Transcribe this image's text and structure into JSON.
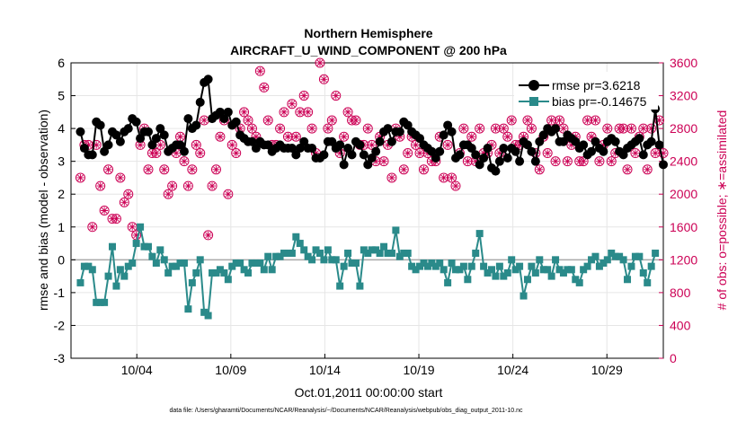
{
  "chart_data": {
    "type": "line",
    "title": "Northern Hemisphere",
    "subtitle": "AIRCRAFT_U_WIND_COMPONENT @ 200 hPa",
    "xlabel": "Oct.01,2011 00:00:00 start",
    "ylabel_left": "rmse and bias (model - observation)",
    "ylabel_right": "# of obs: o=possible; ∗=assimilated",
    "footnote": "data file: /Users/gharamti/Documents/NCAR/Reanalysis/~/Documents/NCAR/Reanalysis/webpub/obs_diag_output_2011-10.nc",
    "x_range_days": [
      0.5,
      32.0
    ],
    "x_ticks": [
      {
        "day": 4,
        "label": "10/04"
      },
      {
        "day": 9,
        "label": "10/09"
      },
      {
        "day": 14,
        "label": "10/14"
      },
      {
        "day": 19,
        "label": "10/19"
      },
      {
        "day": 24,
        "label": "10/24"
      },
      {
        "day": 29,
        "label": "10/29"
      }
    ],
    "ylim_left": [
      -3,
      6
    ],
    "y_ticks_left": [
      "-3",
      "-2",
      "-1",
      "0",
      "1",
      "2",
      "3",
      "4",
      "5",
      "6"
    ],
    "ylim_right": [
      0,
      3600
    ],
    "y_ticks_right": [
      "0",
      "400",
      "800",
      "1200",
      "1600",
      "2000",
      "2400",
      "2800",
      "3200",
      "3600"
    ],
    "grid": true,
    "zero_line": true,
    "legend_position": "top-right",
    "series": [
      {
        "name": "rmse pr=3.6218",
        "color": "#000000",
        "marker": "circle",
        "values": [
          3.9,
          3.4,
          3.2,
          3.2,
          4.2,
          4.1,
          3.3,
          3.5,
          3.9,
          3.8,
          3.6,
          3.9,
          4.0,
          4.3,
          4.2,
          3.7,
          3.9,
          3.9,
          3.5,
          3.7,
          4.0,
          3.8,
          3.3,
          3.4,
          3.5,
          3.5,
          3.3,
          4.3,
          4.0,
          4.1,
          4.8,
          5.4,
          5.5,
          4.3,
          4.4,
          4.5,
          4.3,
          4.5,
          4.1,
          4.2,
          3.8,
          3.7,
          3.6,
          3.6,
          3.4,
          3.6,
          3.5,
          3.5,
          3.3,
          3.4,
          3.5,
          3.4,
          3.4,
          3.4,
          3.2,
          3.4,
          3.6,
          3.4,
          3.4,
          3.1,
          3.1,
          3.2,
          3.6,
          3.6,
          3.4,
          3.5,
          2.9,
          3.4,
          3.2,
          3.6,
          3.5,
          3.2,
          2.9,
          3.1,
          3.3,
          3.6,
          3.9,
          4.0,
          3.6,
          3.9,
          3.9,
          4.2,
          4.1,
          3.9,
          3.8,
          3.7,
          3.5,
          3.4,
          3.3,
          3.1,
          3.3,
          3.8,
          4.1,
          3.9,
          3.1,
          3.2,
          3.5,
          3.5,
          3.4,
          3.2,
          2.9,
          3.1,
          3.4,
          2.8,
          2.7,
          3.0,
          3.4,
          3.1,
          3.4,
          3.3,
          3.0,
          3.6,
          3.5,
          3.3,
          3.0,
          3.6,
          3.8,
          4.0,
          3.9,
          4.0,
          3.6,
          3.6,
          3.8,
          3.7,
          3.6,
          3.4,
          3.5,
          3.2,
          3.3,
          3.6,
          3.4,
          3.3,
          3.6,
          3.7,
          3.6,
          3.3,
          3.2,
          3.4,
          3.5,
          3.6,
          3.7,
          3.2,
          3.5,
          3.6,
          4.6,
          3.5,
          2.9
        ]
      },
      {
        "name": "bias pr=-0.14675",
        "color": "#2a8a8a",
        "marker": "square",
        "values": [
          -0.7,
          -0.2,
          -0.2,
          -0.3,
          -1.3,
          -1.3,
          -1.3,
          -0.5,
          0.4,
          -0.8,
          -0.3,
          -0.5,
          -0.2,
          -0.1,
          0.5,
          1.0,
          0.4,
          0.4,
          0.1,
          -0.1,
          0.3,
          0.0,
          -0.4,
          -0.2,
          -0.2,
          -0.1,
          -0.1,
          -1.5,
          -0.7,
          -0.4,
          0.0,
          -1.6,
          -1.7,
          -0.4,
          -0.4,
          -0.3,
          -0.4,
          -0.6,
          -0.2,
          -0.1,
          -0.1,
          -0.3,
          -0.4,
          -0.1,
          -0.1,
          -0.1,
          -0.3,
          0.1,
          -0.3,
          0.1,
          0.1,
          0.2,
          0.2,
          0.2,
          0.7,
          0.5,
          0.3,
          0.1,
          0.0,
          0.3,
          0.2,
          0.0,
          0.3,
          0.0,
          0.0,
          -0.8,
          -0.2,
          0.2,
          -0.1,
          -0.1,
          -0.8,
          0.3,
          0.2,
          0.3,
          0.3,
          0.2,
          0.4,
          0.2,
          0.2,
          0.9,
          0.1,
          0.2,
          0.2,
          -0.2,
          -0.3,
          -0.2,
          -0.1,
          -0.2,
          -0.1,
          -0.2,
          -0.1,
          -0.3,
          -0.7,
          -0.1,
          -0.3,
          -0.3,
          -0.2,
          -0.6,
          -0.2,
          0.2,
          0.8,
          -0.2,
          -0.4,
          -0.3,
          -0.5,
          -0.2,
          -0.5,
          -0.4,
          0.0,
          -0.3,
          -0.2,
          -1.1,
          -0.6,
          -0.2,
          -0.4,
          0.0,
          -0.3,
          -0.3,
          -0.5,
          0.0,
          -0.3,
          -0.4,
          -0.3,
          -0.3,
          -0.6,
          -0.7,
          -0.3,
          -0.2,
          0.0,
          0.1,
          -0.2,
          -0.1,
          0.0,
          0.2,
          0.1,
          0.1,
          0.0,
          -0.6,
          -0.2,
          0.1,
          0.1,
          -0.4,
          -0.7,
          -0.2,
          0.2
        ]
      },
      {
        "name": "possible obs",
        "axis": "right",
        "color": "#cc0055",
        "marker": "open-circle",
        "values": [
          2200,
          2600,
          2600,
          1600,
          2600,
          2100,
          1800,
          2300,
          1700,
          1700,
          2200,
          1900,
          2000,
          1600,
          1500,
          2600,
          2800,
          2300,
          2500,
          2500,
          2600,
          2300,
          2000,
          2100,
          2500,
          2700,
          2400,
          2100,
          2300,
          2600,
          2500,
          2900,
          1500,
          2100,
          2300,
          2700,
          2900,
          2000,
          2600,
          2500,
          2800,
          3000,
          2900,
          2800,
          2700,
          3500,
          3300,
          2900,
          2600,
          2600,
          2800,
          3000,
          2700,
          3100,
          2700,
          3000,
          3200,
          3000,
          2800,
          2500,
          3600,
          3400,
          2800,
          2900,
          3200,
          2500,
          2700,
          3000,
          2900,
          2900,
          2600,
          2600,
          2800,
          2600,
          2400,
          2700,
          2400,
          2600,
          2200,
          2800,
          2700,
          2300,
          2500,
          2700,
          2600,
          2500,
          2300,
          2500,
          2400,
          2400,
          2700,
          2200,
          2600,
          2200,
          2100,
          2500,
          2800,
          2400,
          2700,
          2400,
          2800,
          2500,
          2500,
          2600,
          2800,
          2500,
          2800,
          2700,
          2900,
          2600,
          2600,
          2700,
          2900,
          2800,
          2500,
          2300,
          2700,
          2500,
          2900,
          2400,
          2900,
          2800,
          2400,
          2600,
          2700,
          2400,
          2400,
          2900,
          2700,
          2900,
          2400,
          2600,
          2800,
          2400,
          2500,
          2800,
          2800,
          2300,
          2800,
          2500,
          2700,
          2800,
          2300,
          2800,
          2500,
          2900,
          2500
        ]
      },
      {
        "name": "assimilated obs",
        "axis": "right",
        "color": "#cc0055",
        "marker": "asterisk",
        "values": [
          2200,
          2600,
          2600,
          1600,
          2600,
          2100,
          1800,
          2300,
          1700,
          1700,
          2200,
          1900,
          2000,
          1600,
          1500,
          2600,
          2800,
          2300,
          2500,
          2500,
          2600,
          2300,
          2000,
          2100,
          2500,
          2700,
          2400,
          2100,
          2300,
          2600,
          2500,
          2900,
          1500,
          2100,
          2300,
          2700,
          2900,
          2000,
          2600,
          2500,
          2800,
          3000,
          2900,
          2800,
          2700,
          3500,
          3300,
          2900,
          2600,
          2600,
          2800,
          3000,
          2700,
          3100,
          2700,
          3000,
          3200,
          3000,
          2800,
          2500,
          3600,
          3400,
          2800,
          2900,
          3200,
          2500,
          2700,
          3000,
          2900,
          2900,
          2600,
          2600,
          2800,
          2600,
          2400,
          2700,
          2400,
          2600,
          2200,
          2800,
          2700,
          2300,
          2500,
          2700,
          2600,
          2500,
          2300,
          2500,
          2400,
          2400,
          2700,
          2200,
          2600,
          2200,
          2100,
          2500,
          2800,
          2400,
          2700,
          2400,
          2800,
          2500,
          2500,
          2600,
          2800,
          2500,
          2800,
          2700,
          2900,
          2600,
          2600,
          2700,
          2900,
          2800,
          2500,
          2300,
          2700,
          2500,
          2900,
          2400,
          2900,
          2800,
          2400,
          2600,
          2700,
          2400,
          2400,
          2900,
          2700,
          2900,
          2400,
          2600,
          2800,
          2400,
          2500,
          2800,
          2800,
          2300,
          2800,
          2500,
          2700,
          2800,
          2300,
          2800,
          2500,
          2900,
          2500
        ]
      }
    ]
  }
}
